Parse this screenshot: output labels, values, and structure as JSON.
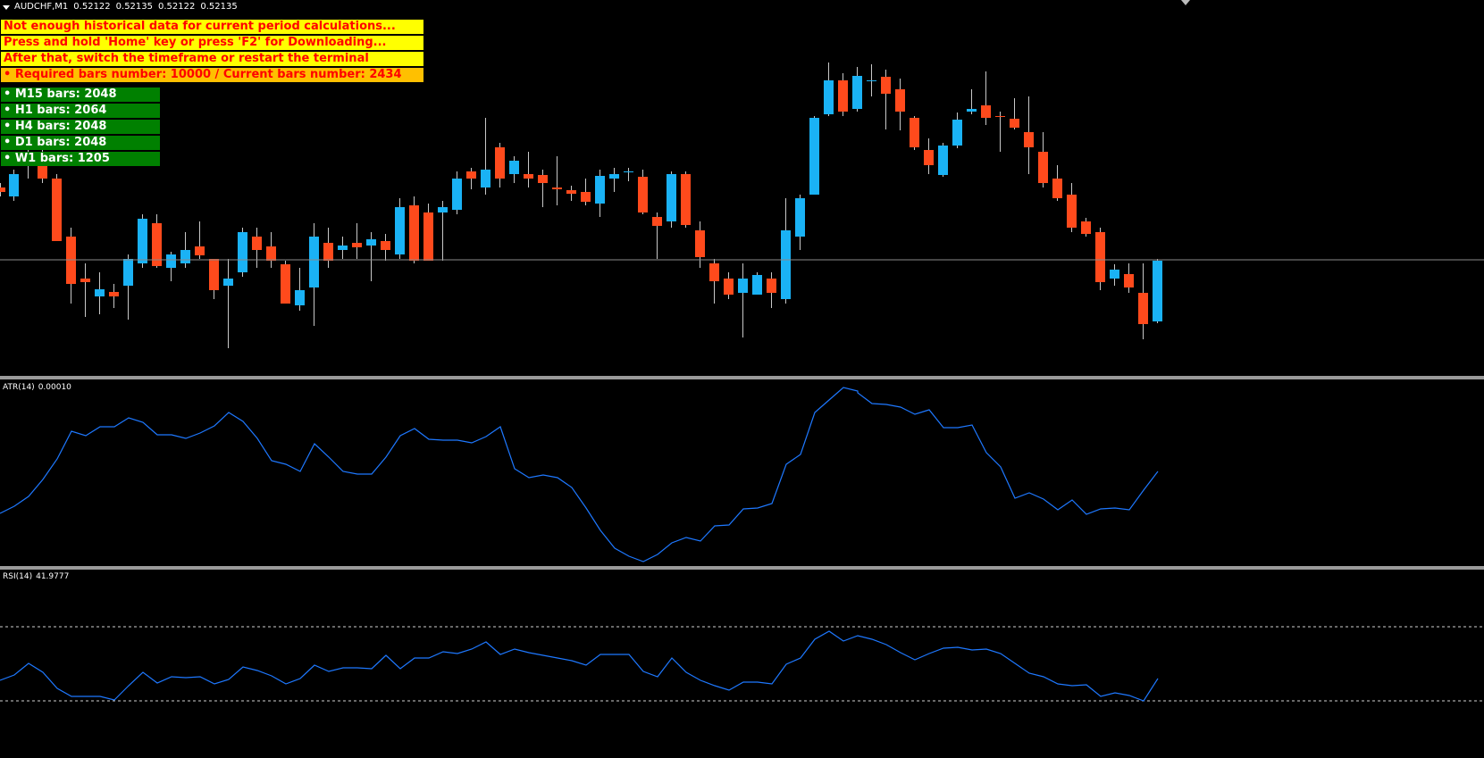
{
  "header": {
    "symbol": "AUDCHF,M1",
    "prices": [
      "0.52122",
      "0.52135",
      "0.52122",
      "0.52135"
    ]
  },
  "warnings": [
    "Not enough historical data for current period calculations...",
    "Press and hold 'Home' key or press 'F2' for Downloading...",
    "After that, switch the timeframe or restart the terminal",
    "• Required bars number: 10000 / Current bars number: 2434"
  ],
  "bar_counts": [
    "• M15 bars: 2048",
    "• H1 bars: 2064",
    "• H4 bars: 2048",
    "• D1 bars: 2048",
    "• W1 bars: 1205"
  ],
  "indicators": {
    "atr": {
      "name": "ATR(14)",
      "value": "0.00010"
    },
    "rsi": {
      "name": "RSI(14)",
      "value": "41.9777"
    }
  },
  "colors": {
    "background": "#000000",
    "bull": "#1ab2f5",
    "bear": "#ff4a1c",
    "wick": "#c8c8c8",
    "indicator_line": "#1e78ff",
    "separator": "#9a9a9a",
    "warning_bg": "#ffff00",
    "warning_text": "#ff0000",
    "required_bg": "#ffc000",
    "bars_bg": "#008000"
  }
}
